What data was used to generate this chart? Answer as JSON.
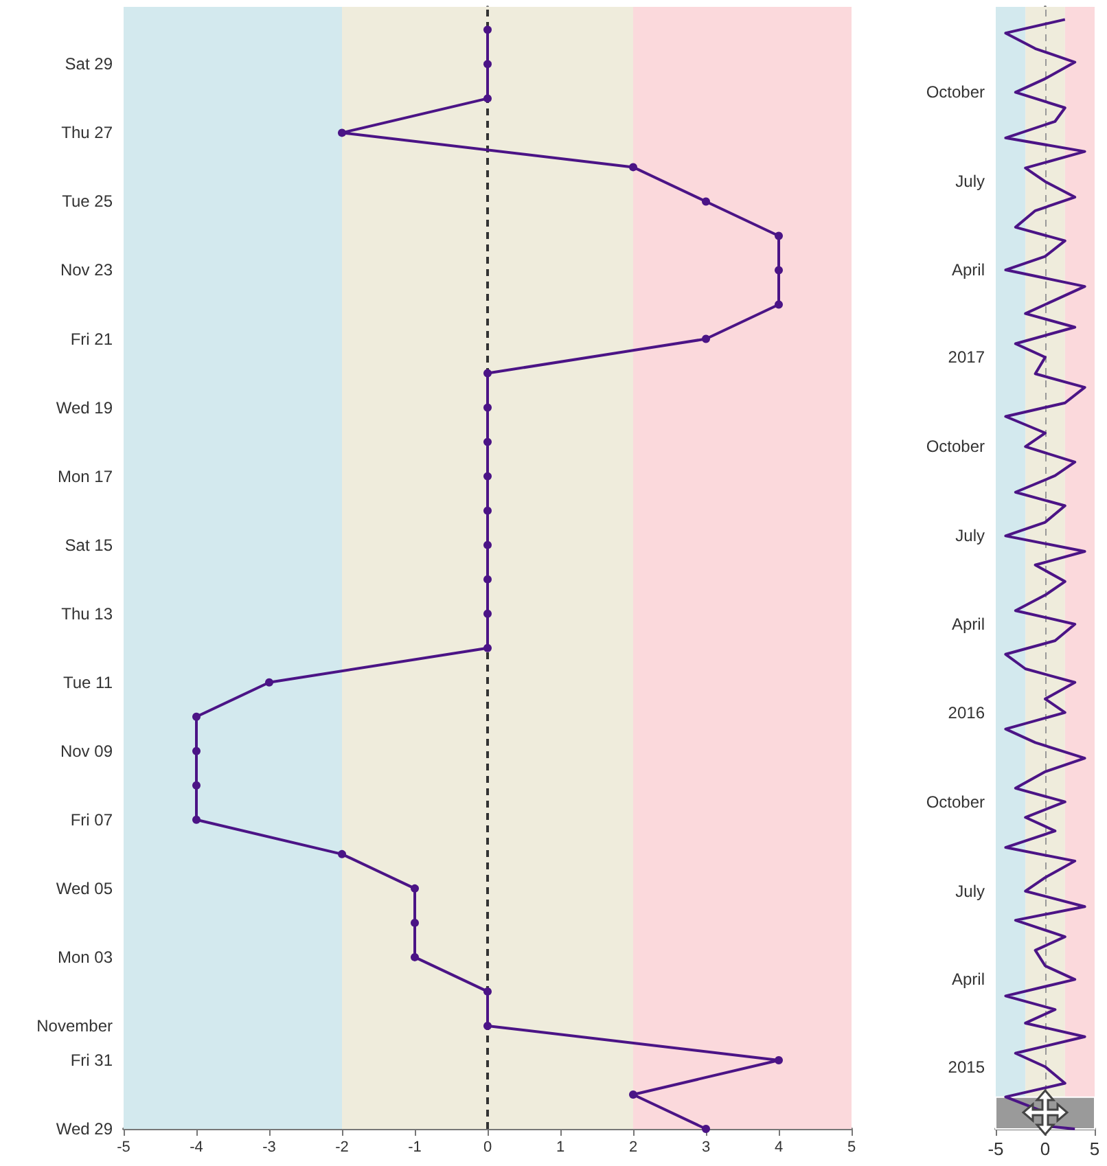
{
  "chart_data": [
    {
      "type": "line",
      "orientation": "horizontal",
      "marker": "circle",
      "line_style": "solid",
      "x": [
        "--10-29",
        "--10-30",
        "--10-31",
        "--11-01",
        "--11-02",
        "--11-03",
        "--11-04",
        "--11-05",
        "--11-06",
        "--11-07",
        "--11-08",
        "--11-09",
        "--11-10",
        "--11-11",
        "--11-12",
        "--11-13",
        "--11-14",
        "--11-15",
        "--11-16",
        "--11-17",
        "--11-18",
        "--11-19",
        "--11-20",
        "--11-21",
        "--11-22",
        "--11-23",
        "--11-24",
        "--11-25",
        "--11-26",
        "--11-27",
        "--11-28",
        "--11-29",
        "--11-30"
      ],
      "series": [
        {
          "color": "#4b1486",
          "values": [
            3,
            2,
            4,
            0,
            0,
            -1,
            -1,
            -1,
            -2,
            -4,
            -4,
            -4,
            -4,
            -3,
            0,
            0,
            0,
            0,
            0,
            0,
            0,
            0,
            0,
            3,
            4,
            4,
            4,
            3,
            2,
            -2,
            0,
            0,
            0
          ]
        }
      ],
      "xlim": [
        -5,
        5
      ],
      "xticks": [
        -5,
        -4,
        -3,
        -2,
        -1,
        0,
        1,
        2,
        3,
        4,
        5
      ],
      "ylim": [
        "--10-29",
        "--11-30T16:00"
      ],
      "yticks": [
        {
          "value": "--10-29",
          "label": "Wed 29"
        },
        {
          "value": "--10-31",
          "label": "Fri 31"
        },
        {
          "value": "--11-01",
          "label": "November"
        },
        {
          "value": "--11-03",
          "label": "Mon 03"
        },
        {
          "value": "--11-05",
          "label": "Wed 05"
        },
        {
          "value": "--11-07",
          "label": "Fri 07"
        },
        {
          "value": "--11-09",
          "label": "Nov 09"
        },
        {
          "value": "--11-11",
          "label": "Tue 11"
        },
        {
          "value": "--11-13",
          "label": "Thu 13"
        },
        {
          "value": "--11-15",
          "label": "Sat 15"
        },
        {
          "value": "--11-17",
          "label": "Mon 17"
        },
        {
          "value": "--11-19",
          "label": "Wed 19"
        },
        {
          "value": "--11-21",
          "label": "Fri 21"
        },
        {
          "value": "--11-23",
          "label": "Nov 23"
        },
        {
          "value": "--11-25",
          "label": "Tue 25"
        },
        {
          "value": "--11-27",
          "label": "Thu 27"
        },
        {
          "value": "--11-29",
          "label": "Sat 29"
        }
      ],
      "bands": [
        {
          "axis": "x",
          "from": -5,
          "to": -2,
          "color": "#d3e9ee"
        },
        {
          "axis": "x",
          "from": -2,
          "to": 2,
          "color": "#efecdc"
        },
        {
          "axis": "x",
          "from": 2,
          "to": 5,
          "color": "#fbd9dc"
        }
      ],
      "ref_lines": [
        {
          "axis": "x",
          "value": 0,
          "color": "#333333",
          "line_style": "dashed"
        }
      ]
    },
    {
      "type": "line",
      "orientation": "horizontal",
      "marker": "none",
      "line_style": "solid",
      "x": [
        "2014-10-29",
        "2014-11-01",
        "2014-11-15",
        "2014-12-01",
        "2014-12-15",
        "2015-01-01",
        "2015-01-15",
        "2015-02-01",
        "2015-02-15",
        "2015-03-01",
        "2015-03-15",
        "2015-04-01",
        "2015-04-15",
        "2015-05-01",
        "2015-05-15",
        "2015-06-01",
        "2015-06-15",
        "2015-07-01",
        "2015-07-15",
        "2015-08-01",
        "2015-08-15",
        "2015-09-01",
        "2015-09-15",
        "2015-10-01",
        "2015-10-15",
        "2015-11-01",
        "2015-11-15",
        "2015-12-01",
        "2015-12-15",
        "2016-01-01",
        "2016-01-15",
        "2016-02-01",
        "2016-02-15",
        "2016-03-01",
        "2016-03-15",
        "2016-04-01",
        "2016-04-15",
        "2016-05-01",
        "2016-05-15",
        "2016-06-01",
        "2016-06-15",
        "2016-07-01",
        "2016-07-15",
        "2016-08-01",
        "2016-08-15",
        "2016-09-01",
        "2016-09-15",
        "2016-10-01",
        "2016-10-15",
        "2016-11-01",
        "2016-11-15",
        "2016-12-01",
        "2016-12-15",
        "2017-01-01",
        "2017-01-15",
        "2017-02-01",
        "2017-02-15",
        "2017-03-01",
        "2017-03-15",
        "2017-04-01",
        "2017-04-15",
        "2017-05-01",
        "2017-05-15",
        "2017-06-01",
        "2017-06-15",
        "2017-07-01",
        "2017-07-15",
        "2017-08-01",
        "2017-08-15",
        "2017-09-01",
        "2017-09-15",
        "2017-10-01",
        "2017-10-15",
        "2017-11-01",
        "2017-11-15",
        "2017-12-01",
        "2017-12-15"
      ],
      "series": [
        {
          "color": "#4b1486",
          "values": [
            3,
            0,
            0,
            -4,
            2,
            0,
            -3,
            4,
            -2,
            1,
            -4,
            3,
            0,
            -1,
            2,
            -3,
            4,
            -2,
            0,
            3,
            -4,
            1,
            -2,
            2,
            -3,
            0,
            4,
            -1,
            -4,
            2,
            0,
            3,
            -2,
            -4,
            1,
            3,
            -3,
            0,
            2,
            -1,
            4,
            -4,
            0,
            2,
            -3,
            1,
            3,
            -2,
            0,
            -4,
            2,
            4,
            -1,
            0,
            -3,
            3,
            -2,
            1,
            4,
            -4,
            0,
            2,
            -3,
            -1,
            3,
            0,
            -2,
            4,
            -4,
            1,
            2,
            -3,
            0,
            3,
            -1,
            -4,
            2
          ]
        }
      ],
      "xlim": [
        -5,
        5
      ],
      "xticks": [
        -5,
        0,
        5
      ],
      "ylim": [
        "2014-10-29",
        "2017-12-28"
      ],
      "yticks": [
        {
          "value": "2015",
          "label": "2015"
        },
        {
          "value": "2015-04",
          "label": "April"
        },
        {
          "value": "2015-07",
          "label": "July"
        },
        {
          "value": "2015-10",
          "label": "October"
        },
        {
          "value": "2016",
          "label": "2016"
        },
        {
          "value": "2016-04",
          "label": "April"
        },
        {
          "value": "2016-07",
          "label": "July"
        },
        {
          "value": "2016-10",
          "label": "October"
        },
        {
          "value": "2017",
          "label": "2017"
        },
        {
          "value": "2017-04",
          "label": "April"
        },
        {
          "value": "2017-07",
          "label": "July"
        },
        {
          "value": "2017-10",
          "label": "October"
        }
      ],
      "bands": [
        {
          "axis": "x",
          "from": -5,
          "to": -2,
          "color": "#d3e9ee"
        },
        {
          "axis": "x",
          "from": -2,
          "to": 2,
          "color": "#efecdc"
        },
        {
          "axis": "x",
          "from": 2,
          "to": 5,
          "color": "#fbd9dc"
        },
        {
          "axis": "y",
          "from": "2014-10-29",
          "to": "2014-11-30T16:00",
          "color": "#9a9a9a"
        }
      ],
      "ref_lines": [
        {
          "axis": "x",
          "value": 0,
          "color": "#999999",
          "line_style": "dashed"
        }
      ]
    }
  ]
}
